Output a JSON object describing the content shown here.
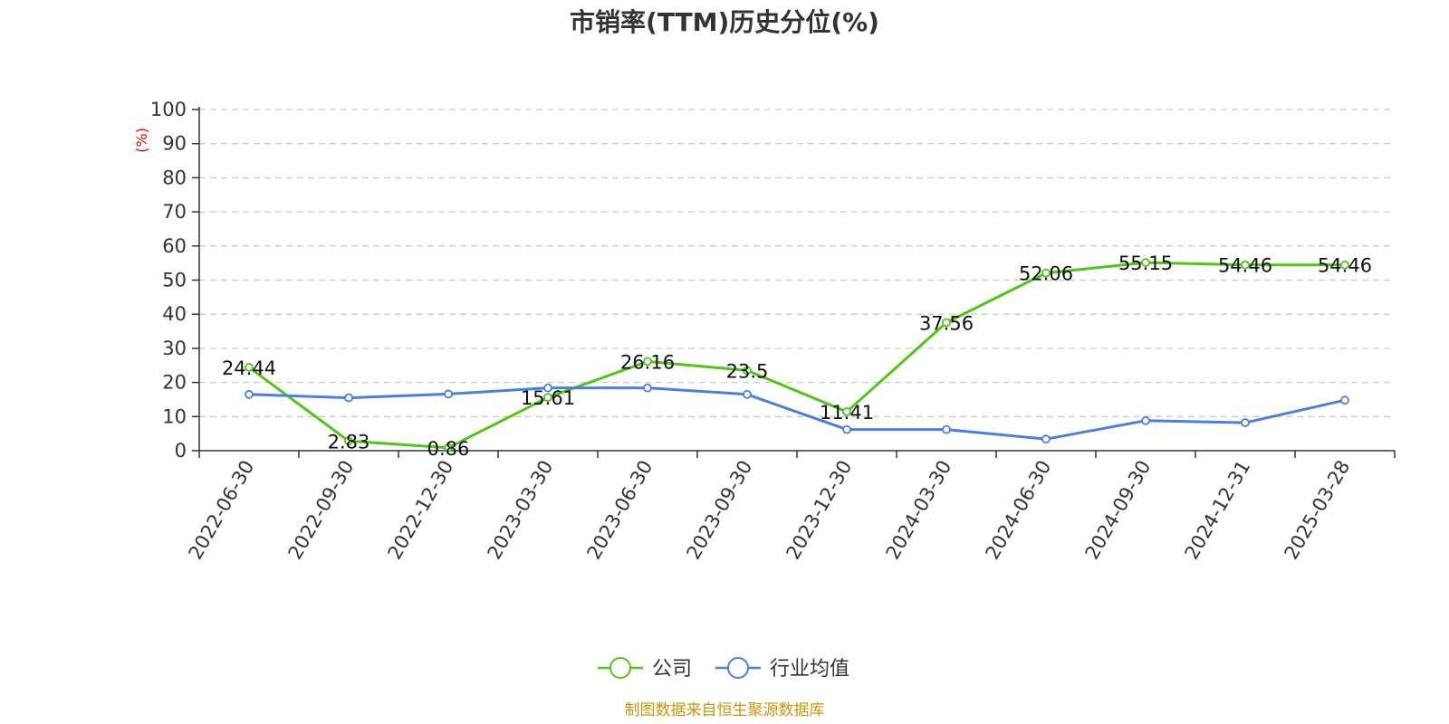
{
  "chart_data": {
    "type": "line",
    "title": "市销率(TTM)历史分位(%)",
    "ylabel": "(%)",
    "xlabel": "",
    "ylim": [
      0,
      100
    ],
    "yticks": [
      0,
      10,
      20,
      30,
      40,
      50,
      60,
      70,
      80,
      90,
      100
    ],
    "grid": true,
    "legend": "bottom-center",
    "categories": [
      "2022-06-30",
      "2022-09-30",
      "2022-12-30",
      "2023-03-30",
      "2023-06-30",
      "2023-09-30",
      "2023-12-30",
      "2024-03-30",
      "2024-06-30",
      "2024-09-30",
      "2024-12-31",
      "2025-03-28"
    ],
    "series": [
      {
        "name": "公司",
        "color": "#52c41a",
        "values": [
          24.44,
          2.83,
          0.86,
          15.61,
          26.16,
          23.5,
          11.41,
          37.56,
          52.06,
          55.15,
          54.46,
          54.46
        ],
        "labels": [
          "24.44",
          "2.83",
          "0.86",
          "15.61",
          "26.16",
          "23.5",
          "11.41",
          "37.56",
          "52.06",
          "55.15",
          "54.46",
          "54.46"
        ],
        "show_labels": true
      },
      {
        "name": "行业均值",
        "color": "#4a7fdc",
        "values": [
          16.5,
          15.5,
          16.6,
          18.4,
          18.4,
          16.5,
          6.2,
          6.2,
          3.4,
          8.8,
          8.2,
          14.8
        ],
        "show_labels": false
      }
    ],
    "source": "制图数据来自恒生聚源数据库"
  }
}
